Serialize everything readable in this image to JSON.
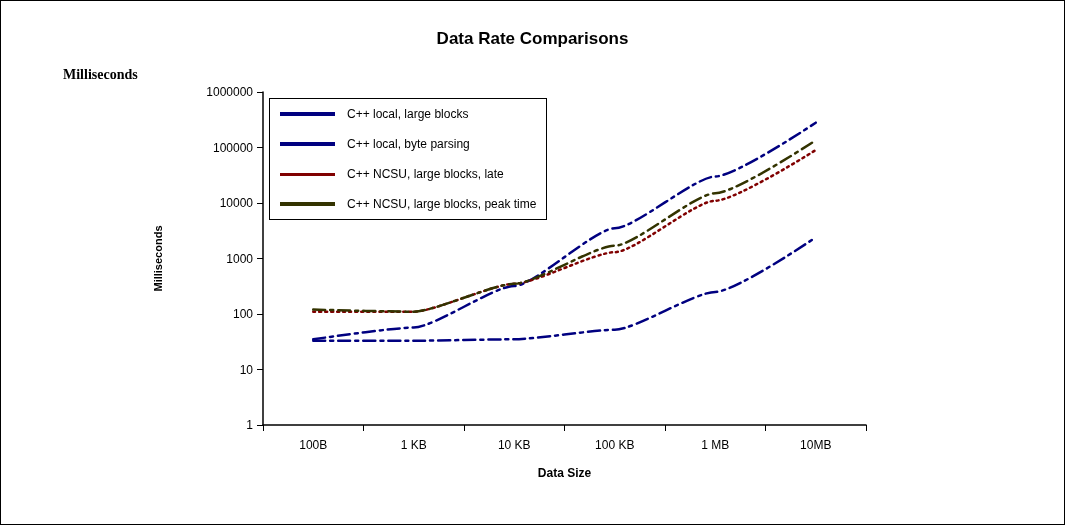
{
  "chart_data": {
    "type": "line",
    "title": "Data Rate Comparisons",
    "xlabel": "Data Size",
    "ylabel": "Milliseconds",
    "annotations": [
      "Milliseconds"
    ],
    "categories": [
      "100B",
      "1 KB",
      "10 KB",
      "100 KB",
      "1 MB",
      "10MB"
    ],
    "series": [
      {
        "name": "C++ local, large blocks",
        "color": "#000080",
        "line_style": "dashed",
        "values": [
          33,
          33,
          35,
          52,
          250,
          2400
        ]
      },
      {
        "name": "C++ local, byte parsing",
        "color": "#000080",
        "line_style": "dashed",
        "values": [
          35,
          57,
          320,
          3500,
          30000,
          280000
        ]
      },
      {
        "name": "C++ NCSU, large blocks, late",
        "color": "#800000",
        "line_style": "dotted",
        "values": [
          110,
          110,
          350,
          1300,
          11000,
          90000
        ]
      },
      {
        "name": "C++ NCSU, large blocks, peak time",
        "color": "#333300",
        "line_style": "dashed",
        "values": [
          120,
          110,
          350,
          1700,
          15000,
          135000
        ]
      }
    ],
    "log": "y",
    "ylim": [
      1,
      1000000
    ],
    "yticks": [
      1,
      10,
      100,
      1000,
      10000,
      100000,
      1000000
    ],
    "grid": false,
    "legend": "top left",
    "marker": "none"
  }
}
